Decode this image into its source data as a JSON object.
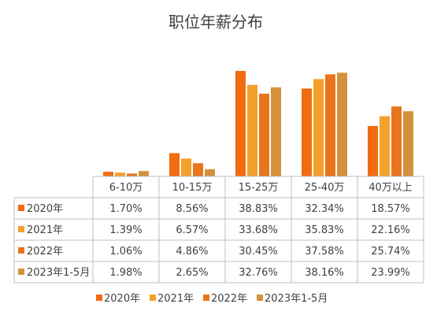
{
  "chart_data": {
    "type": "bar",
    "title": "职位年薪分布",
    "xlabel": "",
    "ylabel": "",
    "unit": "%",
    "ylim": [
      0,
      40
    ],
    "grid": false,
    "legend_position": "bottom",
    "data_table": true,
    "categories": [
      "6-10万",
      "10-15万",
      "15-25万",
      "25-40万",
      "40万以上"
    ],
    "series": [
      {
        "name": "2020年",
        "color": "#f26b0f",
        "values": [
          1.7,
          8.56,
          38.83,
          32.34,
          18.57
        ],
        "labels": [
          "1.70%",
          "8.56%",
          "38.83%",
          "32.34%",
          "18.57%"
        ]
      },
      {
        "name": "2021年",
        "color": "#f5a02a",
        "values": [
          1.39,
          6.57,
          33.68,
          35.83,
          22.16
        ],
        "labels": [
          "1.39%",
          "6.57%",
          "33.68%",
          "35.83%",
          "22.16%"
        ]
      },
      {
        "name": "2022年",
        "color": "#e8751c",
        "values": [
          1.06,
          4.86,
          30.45,
          37.58,
          25.74
        ],
        "labels": [
          "1.06%",
          "4.86%",
          "30.45%",
          "37.58%",
          "25.74%"
        ]
      },
      {
        "name": "2023年1-5月",
        "color": "#d4913c",
        "values": [
          1.98,
          2.65,
          32.76,
          38.16,
          23.99
        ],
        "labels": [
          "1.98%",
          "2.65%",
          "32.76%",
          "38.16%",
          "23.99%"
        ]
      }
    ]
  }
}
